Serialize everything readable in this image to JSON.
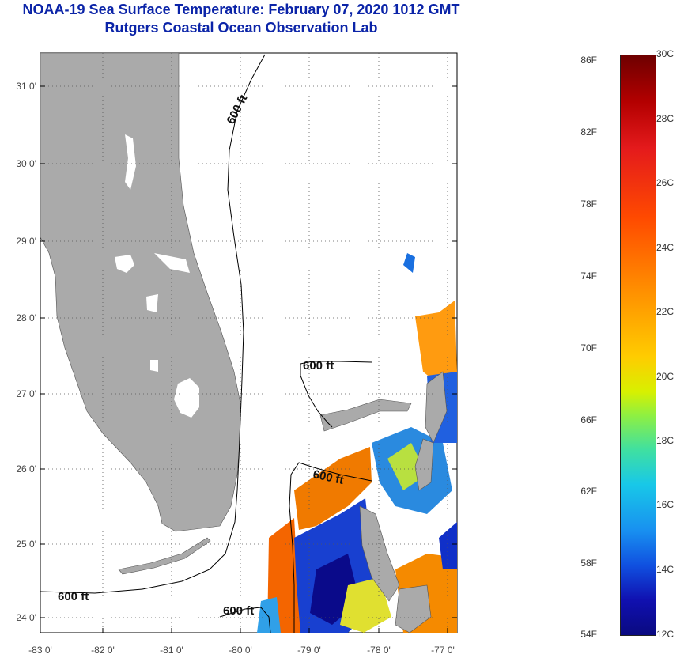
{
  "title_line1": "NOAA-19 Sea Surface Temperature:  February 07, 2020 1012 GMT",
  "title_line2": "Rutgers Coastal Ocean Observation Lab",
  "lat_ticks": [
    "31 0'",
    "30 0'",
    "29 0'",
    "28 0'",
    "27 0'",
    "26 0'",
    "25 0'",
    "24 0'"
  ],
  "lon_ticks": [
    "-83 0'",
    "-82 0'",
    "-81 0'",
    "-80 0'",
    "-79 0'",
    "-78 0'",
    "-77 0'"
  ],
  "isobath_label": "600 ft",
  "colorbar": {
    "fahrenheit": [
      "86F",
      "82F",
      "78F",
      "74F",
      "70F",
      "66F",
      "62F",
      "58F",
      "54F"
    ],
    "celsius": [
      "30C",
      "28C",
      "26C",
      "24C",
      "22C",
      "20C",
      "18C",
      "16C",
      "14C",
      "12C"
    ]
  },
  "colors": {
    "land": "#aaaaaa",
    "title": "#0b24a8"
  }
}
